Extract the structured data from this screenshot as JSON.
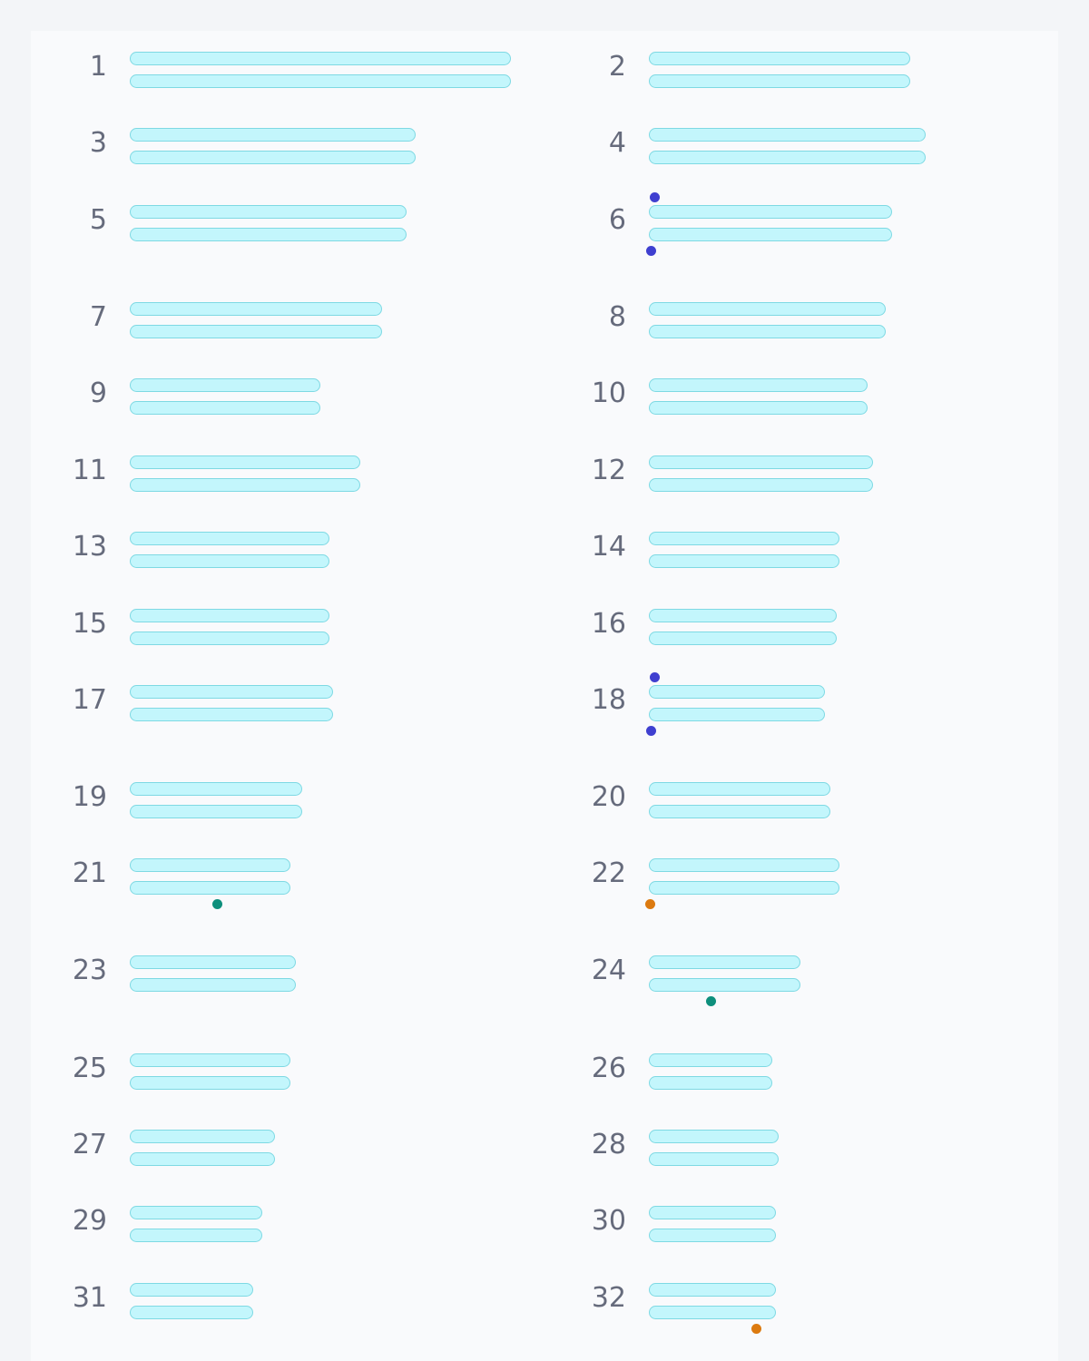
{
  "colors": {
    "chromatid_fill": "#c3f6fc",
    "chromatid_stroke": "#7ed9e3",
    "label": "#666b7c",
    "mark_blue": "#3f3fd0",
    "mark_teal": "#0e8f7c",
    "mark_orange": "#dc7a10"
  },
  "pairs": [
    {
      "label": "1",
      "length": 420,
      "marks": []
    },
    {
      "label": "2",
      "length": 288,
      "marks": []
    },
    {
      "label": "3",
      "length": 315,
      "marks": []
    },
    {
      "label": "4",
      "length": 305,
      "marks": []
    },
    {
      "label": "5",
      "length": 305,
      "marks": []
    },
    {
      "label": "6",
      "length": 268,
      "marks": [
        {
          "side": "above",
          "pos": 6,
          "color": "mark_blue"
        },
        {
          "side": "below",
          "pos": 2,
          "color": "mark_blue"
        }
      ]
    },
    {
      "label": "7",
      "length": 278,
      "marks": []
    },
    {
      "label": "8",
      "length": 261,
      "marks": []
    },
    {
      "label": "9",
      "length": 210,
      "marks": []
    },
    {
      "label": "10",
      "length": 241,
      "marks": []
    },
    {
      "label": "11",
      "length": 254,
      "marks": []
    },
    {
      "label": "12",
      "length": 247,
      "marks": []
    },
    {
      "label": "13",
      "length": 220,
      "marks": []
    },
    {
      "label": "14",
      "length": 210,
      "marks": []
    },
    {
      "label": "15",
      "length": 220,
      "marks": []
    },
    {
      "label": "16",
      "length": 207,
      "marks": []
    },
    {
      "label": "17",
      "length": 224,
      "marks": []
    },
    {
      "label": "18",
      "length": 194,
      "marks": [
        {
          "side": "above",
          "pos": 6,
          "color": "mark_blue"
        },
        {
          "side": "below",
          "pos": 2,
          "color": "mark_blue"
        }
      ]
    },
    {
      "label": "19",
      "length": 190,
      "marks": []
    },
    {
      "label": "20",
      "length": 200,
      "marks": []
    },
    {
      "label": "21",
      "length": 177,
      "marks": [
        {
          "side": "below",
          "pos": 96,
          "color": "mark_teal"
        }
      ]
    },
    {
      "label": "22",
      "length": 210,
      "marks": [
        {
          "side": "below",
          "pos": 1,
          "color": "mark_orange"
        }
      ]
    },
    {
      "label": "23",
      "length": 183,
      "marks": []
    },
    {
      "label": "24",
      "length": 167,
      "marks": [
        {
          "side": "below",
          "pos": 68,
          "color": "mark_teal"
        }
      ]
    },
    {
      "label": "25",
      "length": 177,
      "marks": []
    },
    {
      "label": "26",
      "length": 136,
      "marks": []
    },
    {
      "label": "27",
      "length": 160,
      "marks": []
    },
    {
      "label": "28",
      "length": 143,
      "marks": []
    },
    {
      "label": "29",
      "length": 146,
      "marks": []
    },
    {
      "label": "30",
      "length": 140,
      "marks": []
    },
    {
      "label": "31",
      "length": 136,
      "marks": []
    },
    {
      "label": "32",
      "length": 140,
      "marks": [
        {
          "side": "below",
          "pos": 118,
          "color": "mark_orange"
        }
      ]
    }
  ]
}
